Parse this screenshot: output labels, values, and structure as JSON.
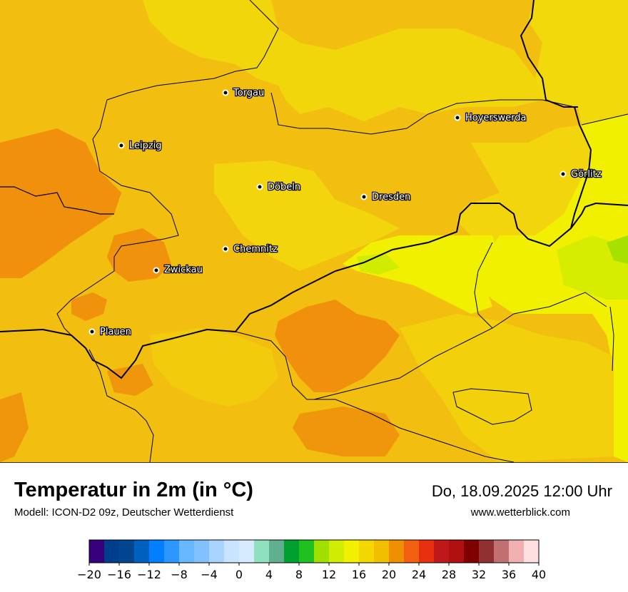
{
  "map": {
    "cities": [
      {
        "name": "Torgau"
      },
      {
        "name": "Hoyerswerda"
      },
      {
        "name": "Leipzig"
      },
      {
        "name": "Görlitz"
      },
      {
        "name": "Döbeln"
      },
      {
        "name": "Dresden"
      },
      {
        "name": "Chemnitz"
      },
      {
        "name": "Zwickau"
      },
      {
        "name": "Plauen"
      }
    ]
  },
  "footer": {
    "title": "Temperatur in 2m (in °C)",
    "subtitle": "Modell: ICON-D2 09z, Deutscher Wetterdienst",
    "datetime": "Do, 18.09.2025 12:00 Uhr",
    "website": "www.wetterblick.com"
  },
  "legend": {
    "min": -20,
    "max": 40,
    "tick_labels": [
      "−20",
      "−16",
      "−12",
      "−8",
      "−4",
      "0",
      "4",
      "8",
      "12",
      "16",
      "20",
      "24",
      "28",
      "32",
      "36",
      "40"
    ],
    "colors": [
      "#36007c",
      "#003d8c",
      "#004590",
      "#0060c0",
      "#0080ff",
      "#2c98ff",
      "#68b8ff",
      "#80c0ff",
      "#a8d4ff",
      "#c8e4ff",
      "#d6ebff",
      "#90e0c0",
      "#60b090",
      "#00a030",
      "#20c020",
      "#a0e000",
      "#d0ec00",
      "#f0f000",
      "#f2d800",
      "#f2be00",
      "#f09000",
      "#f06010",
      "#e83010",
      "#c01818",
      "#b01010",
      "#800000",
      "#903030",
      "#c07070",
      "#f0b0b0",
      "#ffe0e0"
    ]
  }
}
